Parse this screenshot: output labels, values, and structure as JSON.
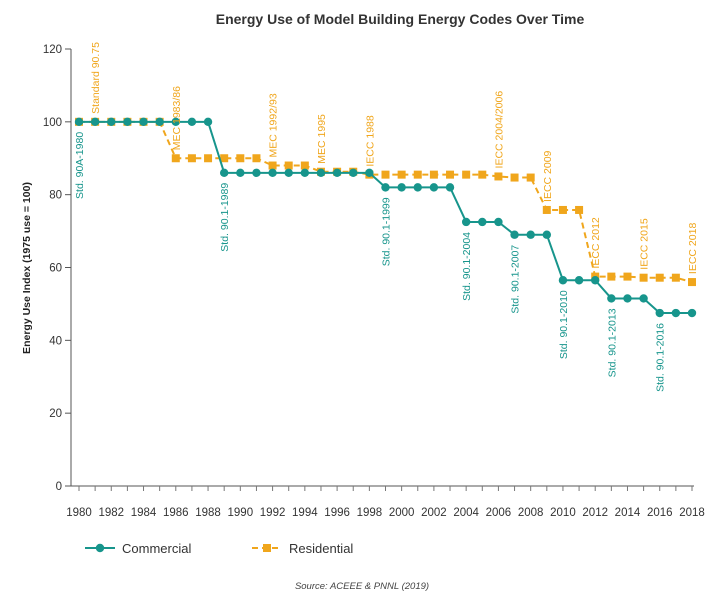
{
  "chart_data": {
    "type": "line",
    "title": "Energy Use of Model Building Energy Codes Over Time",
    "ylabel": "Energy Use Index (1975 use = 100)",
    "xlabel": "",
    "ylim": [
      0,
      120
    ],
    "xlim": [
      1980,
      2018
    ],
    "y_ticks": [
      0,
      20,
      40,
      60,
      80,
      100,
      120
    ],
    "x_ticks": [
      1980,
      1982,
      1984,
      1986,
      1988,
      1990,
      1992,
      1994,
      1996,
      1998,
      2000,
      2002,
      2004,
      2006,
      2008,
      2010,
      2012,
      2014,
      2016,
      2018
    ],
    "x": [
      1980,
      1981,
      1982,
      1983,
      1984,
      1985,
      1986,
      1987,
      1988,
      1989,
      1990,
      1991,
      1992,
      1993,
      1994,
      1995,
      1996,
      1997,
      1998,
      1999,
      2000,
      2001,
      2002,
      2003,
      2004,
      2005,
      2006,
      2007,
      2008,
      2009,
      2010,
      2011,
      2012,
      2013,
      2014,
      2015,
      2016,
      2017,
      2018
    ],
    "series": [
      {
        "name": "Commercial",
        "color": "#17958c",
        "style": "solid",
        "marker": "circle",
        "values": [
          100,
          100,
          100,
          100,
          100,
          100,
          100,
          100,
          100,
          86,
          86,
          86,
          86,
          86,
          86,
          86,
          86,
          86,
          86,
          82,
          82,
          82,
          82,
          82,
          72.5,
          72.5,
          72.5,
          69,
          69,
          69,
          56.5,
          56.5,
          56.5,
          51.5,
          51.5,
          51.5,
          47.5,
          47.5,
          47.5
        ]
      },
      {
        "name": "Residential",
        "color": "#f0a61c",
        "style": "dashed",
        "marker": "square",
        "values": [
          100,
          100,
          100,
          100,
          100,
          100,
          90,
          90,
          90,
          90,
          90,
          90,
          88,
          88,
          88,
          86.3,
          86.3,
          86.3,
          85.5,
          85.5,
          85.5,
          85.5,
          85.5,
          85.5,
          85.5,
          85.5,
          85,
          84.7,
          84.7,
          75.8,
          75.8,
          75.8,
          57.5,
          57.5,
          57.5,
          57.2,
          57.2,
          57.2,
          56
        ]
      }
    ],
    "annotations": [
      {
        "text": "Std. 90A-1980",
        "year": 1980,
        "series": "Commercial",
        "color": "#17958c"
      },
      {
        "text": "Standard 90.75",
        "year": 1981,
        "series": "Residential",
        "color": "#f0a61c"
      },
      {
        "text": "MEC 1983/86",
        "year": 1986,
        "series": "Residential",
        "color": "#f0a61c"
      },
      {
        "text": "Std. 90.1-1989",
        "year": 1989,
        "series": "Commercial",
        "color": "#17958c"
      },
      {
        "text": "MEC 1992/93",
        "year": 1992,
        "series": "Residential",
        "color": "#f0a61c"
      },
      {
        "text": "MEC 1995",
        "year": 1995,
        "series": "Residential",
        "color": "#f0a61c"
      },
      {
        "text": "IECC 1988",
        "year": 1998,
        "series": "Residential",
        "color": "#f0a61c"
      },
      {
        "text": "Std. 90.1-1999",
        "year": 1999,
        "series": "Commercial",
        "color": "#17958c"
      },
      {
        "text": "IECC 2004/2006",
        "year": 2006,
        "series": "Residential",
        "color": "#f0a61c"
      },
      {
        "text": "Std. 90.1-2004",
        "year": 2004,
        "series": "Commercial",
        "color": "#17958c"
      },
      {
        "text": "Std. 90.1-2007",
        "year": 2007,
        "series": "Commercial",
        "color": "#17958c"
      },
      {
        "text": "IECC 2009",
        "year": 2009,
        "series": "Residential",
        "color": "#f0a61c"
      },
      {
        "text": "Std. 90.1-2010",
        "year": 2010,
        "series": "Commercial",
        "color": "#17958c"
      },
      {
        "text": "IECC 2012",
        "year": 2012,
        "series": "Residential",
        "color": "#f0a61c"
      },
      {
        "text": "Std. 90.1-2013",
        "year": 2013,
        "series": "Commercial",
        "color": "#17958c"
      },
      {
        "text": "IECC 2015",
        "year": 2015,
        "series": "Residential",
        "color": "#f0a61c"
      },
      {
        "text": "Std. 90.1-2016",
        "year": 2016,
        "series": "Commercial",
        "color": "#17958c"
      },
      {
        "text": "IECC 2018",
        "year": 2018,
        "series": "Residential",
        "color": "#f0a61c"
      }
    ],
    "legend": {
      "placement": "bottom-left",
      "entries": [
        "Commercial",
        "Residential"
      ]
    },
    "grid": false
  },
  "source": "Source: ACEEE & PNNL (2019)"
}
